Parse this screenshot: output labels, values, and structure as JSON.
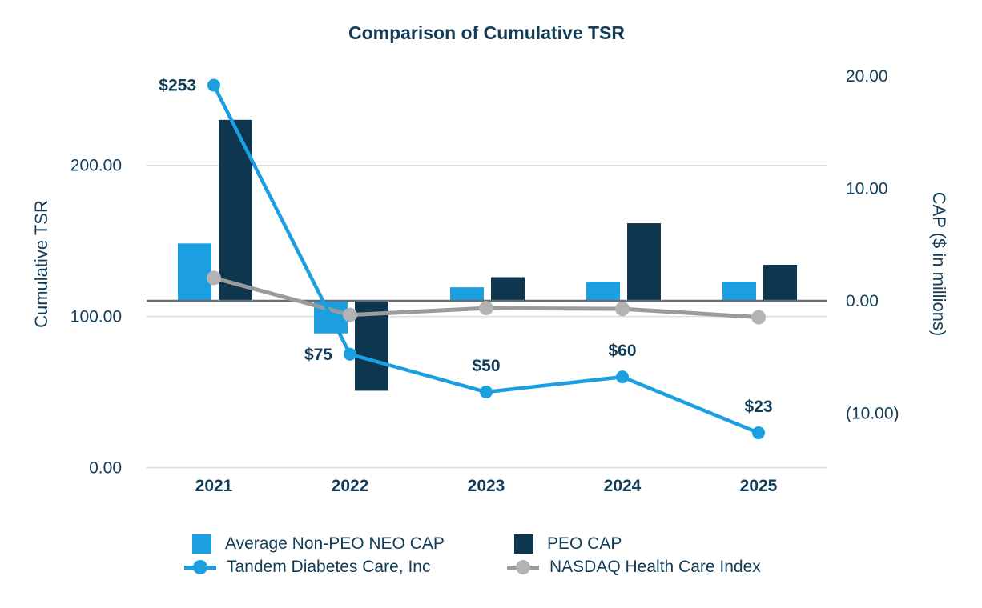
{
  "title": "Comparison of Cumulative TSR",
  "colors": {
    "light_blue": "#1B9FE0",
    "navy": "#0E364F",
    "text": "#123C57",
    "gray_line": "#9B9B9B",
    "gray_fill": "#B3B3B3",
    "zero_line": "#666F75",
    "gridline": "#DDDDDD"
  },
  "chart_data": {
    "type": "combo-bar-line",
    "categories": [
      "2021",
      "2022",
      "2023",
      "2024",
      "2025"
    ],
    "bar_series": [
      {
        "key": "non-peo-cap",
        "name": "Average Non-PEO NEO CAP",
        "axis": "right",
        "color_key": "light_blue",
        "values": [
          5.1,
          -2.9,
          1.2,
          1.7,
          1.7
        ]
      },
      {
        "key": "peo-cap",
        "name": "PEO CAP",
        "axis": "right",
        "color_key": "navy",
        "values": [
          16.1,
          -8.0,
          2.1,
          6.9,
          3.2
        ]
      }
    ],
    "line_series": [
      {
        "key": "tandem",
        "name": "Tandem Diabetes Care, Inc",
        "axis": "left",
        "line_color_key": "light_blue",
        "marker_color_key": "light_blue",
        "values": [
          253,
          75,
          50,
          60,
          23
        ],
        "point_labels": [
          "$253",
          "$75",
          "$50",
          "$60",
          "$23"
        ],
        "label_placement": [
          "left",
          "left",
          "above",
          "above",
          "above"
        ]
      },
      {
        "key": "nasdaq",
        "name": "NASDAQ Health Care Index",
        "axis": "left",
        "line_color_key": "gray_line",
        "marker_color_key": "gray_fill",
        "values": [
          125.5,
          101,
          105.5,
          105,
          99.5
        ]
      }
    ],
    "left_axis": {
      "title": "Cumulative TSR",
      "ticks": [
        {
          "label": "200.00",
          "value": 200
        },
        {
          "label": "100.00",
          "value": 100
        },
        {
          "label": "0.00",
          "value": 0
        }
      ]
    },
    "right_axis": {
      "title": "CAP ($ in millions)",
      "zero_line": true,
      "ticks": [
        {
          "label": "20.00",
          "value": 20
        },
        {
          "label": "10.00",
          "value": 10
        },
        {
          "label": "0.00",
          "value": 0
        },
        {
          "label": "(10.00)",
          "value": -10
        }
      ]
    },
    "grid": "horizontal",
    "legend_position": "bottom"
  },
  "legend": {
    "items": [
      {
        "label": "Average Non-PEO NEO CAP",
        "marker": "square",
        "color_key": "light_blue"
      },
      {
        "label": "PEO CAP",
        "marker": "square",
        "color_key": "navy"
      },
      {
        "label": "Tandem Diabetes Care, Inc",
        "marker": "line-dot",
        "color_key": "light_blue"
      },
      {
        "label": "NASDAQ Health Care Index",
        "marker": "line-dot",
        "color_key": "gray_line"
      }
    ]
  }
}
